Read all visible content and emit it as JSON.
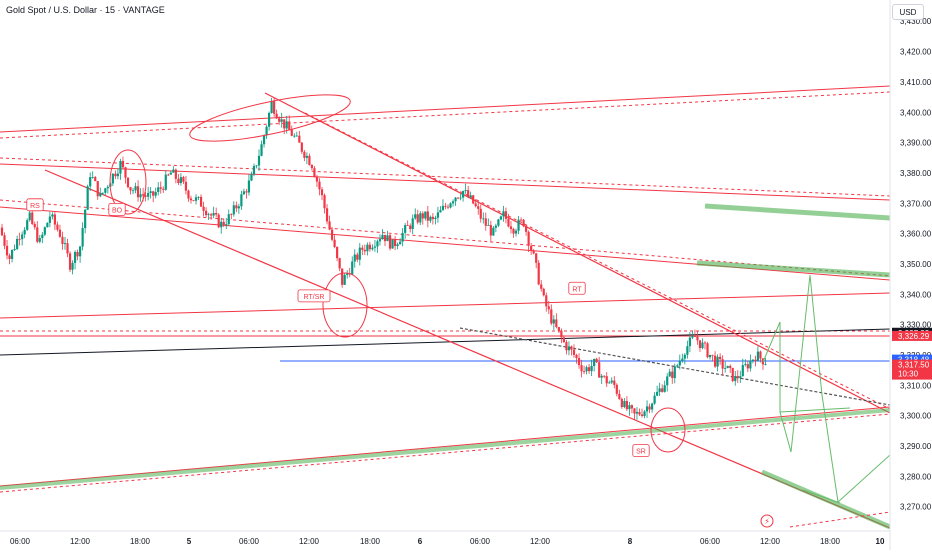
{
  "header": {
    "title": "Gold Spot / U.S. Dollar · 15 · VANTAGE"
  },
  "currency_button": "USD",
  "colors": {
    "up": "#089981",
    "down": "#f23645",
    "line_red": "#f23645",
    "green_band": "#4caf50",
    "projection": "#66bb6a",
    "black_line": "#131722",
    "blue_line": "#2962ff",
    "dark_line": "#555555",
    "axis_text": "#131722",
    "current_price_bg": "#f23645",
    "level_bg": "#f23645",
    "blue_bg": "#2962ff"
  },
  "chart_data": {
    "type": "candlestick",
    "instrument": "Gold Spot / U.S. Dollar",
    "interval": "15",
    "source": "VANTAGE",
    "ylim": [
      3262,
      3437
    ],
    "y_ticks": [
      3270,
      3280,
      3290,
      3300,
      3310,
      3320,
      3330,
      3340,
      3350,
      3360,
      3370,
      3380,
      3390,
      3400,
      3410,
      3420,
      3430
    ],
    "y_tick_labels": [
      "3,270.00",
      "3,280.00",
      "3,290.00",
      "3,300.00",
      "3,310.00",
      "3,320.00",
      "3,330.00",
      "3,340.00",
      "3,350.00",
      "3,360.00",
      "3,370.00",
      "3,380.00",
      "3,390.00",
      "3,400.00",
      "3,410.00",
      "3,420.00",
      "3,430.00"
    ],
    "x_tick_labels": [
      "06:00",
      "12:00",
      "18:00",
      "5",
      "06:00",
      "12:00",
      "18:00",
      "6",
      "06:00",
      "12:00",
      "8",
      "06:00",
      "12:00",
      "18:00",
      "10"
    ],
    "price_path": [
      [
        3362,
        3352,
        3360,
        3365,
        3357,
        3366,
        3360,
        3350,
        3356,
        3380,
        3372,
        3378,
        3383,
        3375,
        3373,
        3372,
        3375,
        3380,
        3377,
        3372,
        3370,
        3366,
        3363,
        3366,
        3372,
        3378,
        3389,
        3403,
        3397,
        3393,
        3388,
        3383,
        3372,
        3358,
        3344,
        3350,
        3355,
        3357,
        3360,
        3356,
        3360,
        3364,
        3366,
        3364,
        3368,
        3372,
        3374,
        3370,
        3364,
        3360,
        3366,
        3362,
        3364,
        3352,
        3338,
        3330,
        3324,
        3320,
        3315,
        3317,
        3312,
        3310,
        3303,
        3300,
        3302,
        3306,
        3311,
        3315,
        3322,
        3326,
        3322,
        3318,
        3316,
        3312,
        3316,
        3320,
        3318
      ]
    ],
    "levels": [
      {
        "price": 3327.33,
        "label": "3,327.33",
        "style": "black-line"
      },
      {
        "price": 3326.29,
        "label": "3,326.29",
        "style": "red-tag"
      },
      {
        "price": 3318.48,
        "label": "3,318.48",
        "style": "blue-line"
      },
      {
        "price": 3317.5,
        "label": "3,317.50",
        "sublabel": "10:30",
        "style": "current-price"
      }
    ],
    "annotations": [
      {
        "text": "RS",
        "price": 3369.5
      },
      {
        "text": "BO",
        "price": 3368
      },
      {
        "text": "RT/SR",
        "price": 3339.5
      },
      {
        "text": "RT",
        "price": 3342
      },
      {
        "text": "SR",
        "price": 3288.5
      }
    ],
    "grid": false
  }
}
